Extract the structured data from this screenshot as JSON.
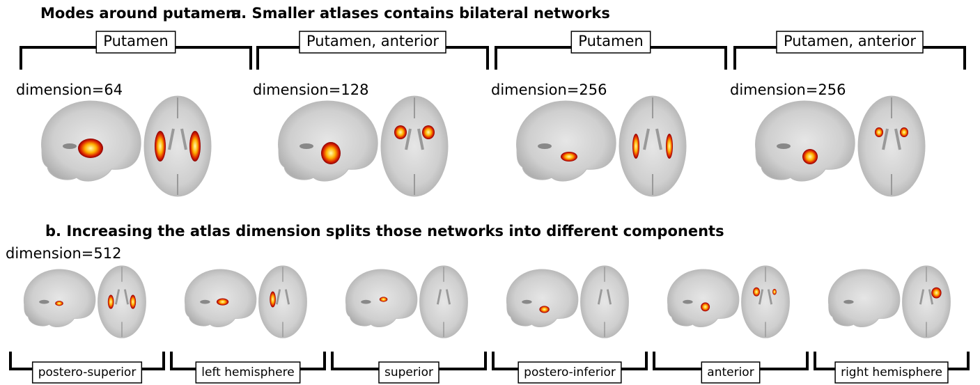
{
  "heading": "Modes around putamen:",
  "section_a": {
    "title": "a. Smaller atlases contains bilateral networks",
    "panels": [
      {
        "label": "Putamen",
        "dimension": "dimension=64"
      },
      {
        "label": "Putamen, anterior",
        "dimension": "dimension=128"
      },
      {
        "label": "Putamen",
        "dimension": "dimension=256"
      },
      {
        "label": "Putamen, anterior",
        "dimension": "dimension=256"
      }
    ]
  },
  "section_b": {
    "title": "b. Increasing the atlas dimension splits those networks into different components",
    "dimension": "dimension=512",
    "panels": [
      {
        "label": "postero-superior"
      },
      {
        "label": "left hemisphere"
      },
      {
        "label": "superior"
      },
      {
        "label": "postero-inferior"
      },
      {
        "label": "anterior"
      },
      {
        "label": "right hemisphere"
      }
    ]
  }
}
